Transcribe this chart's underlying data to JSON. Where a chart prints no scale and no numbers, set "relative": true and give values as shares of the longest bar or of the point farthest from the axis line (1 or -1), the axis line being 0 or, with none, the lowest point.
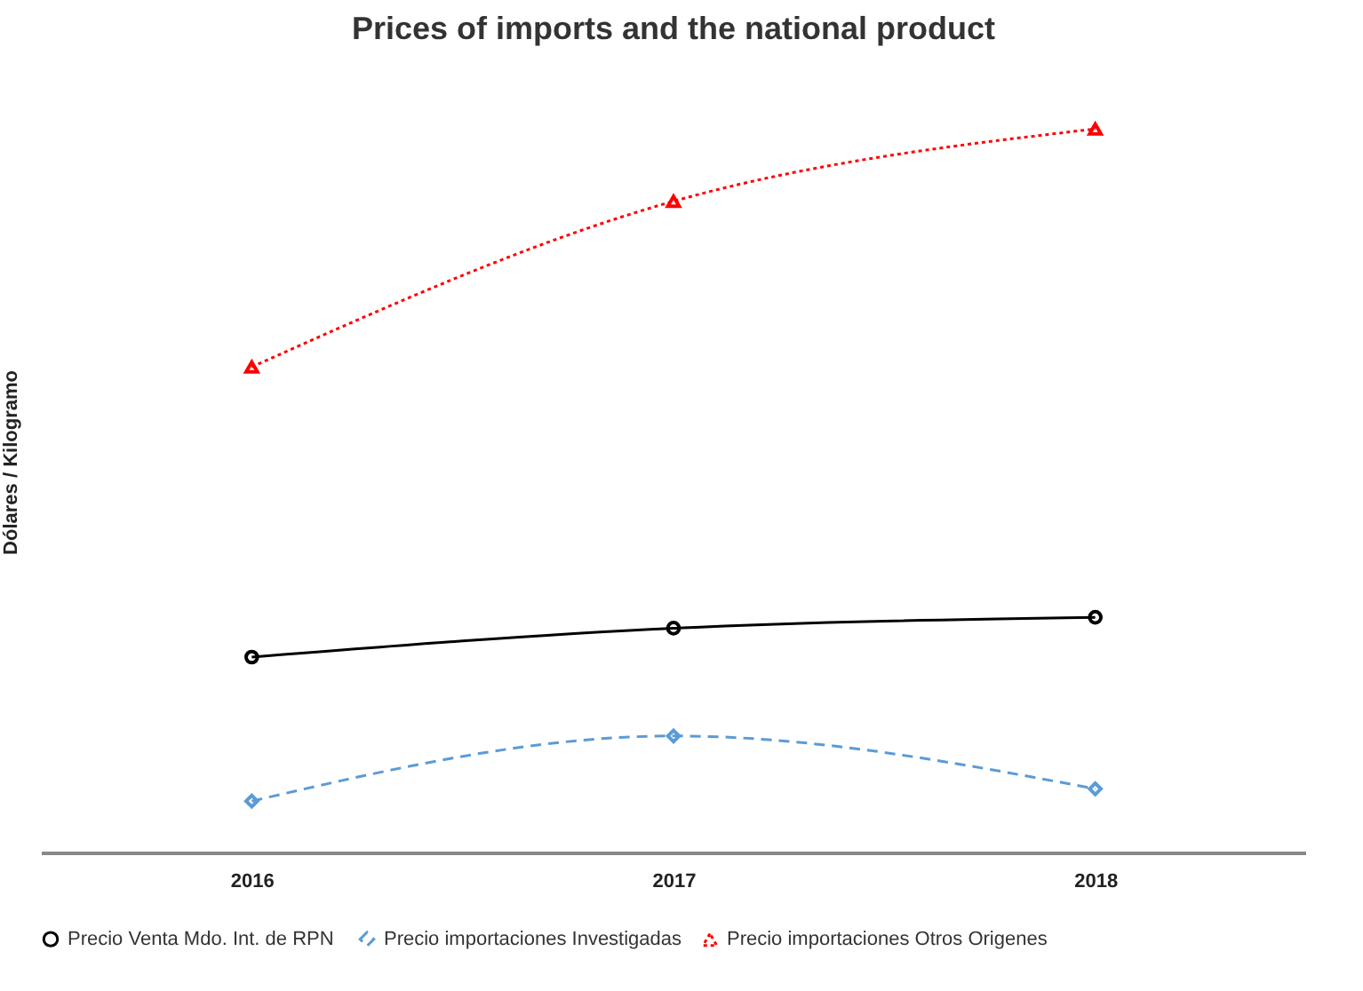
{
  "chart_data": {
    "type": "line",
    "title": "Prices of imports and the national product",
    "ylabel": "Dólares / Kilogramo",
    "categories": [
      "2016",
      "2017",
      "2018"
    ],
    "relative": true,
    "legend": "bottom",
    "grid": false,
    "series": [
      {
        "name": "Precio Venta  Mdo. Int. de RPN",
        "color": "#000000",
        "marker": "circle",
        "line_style": "solid",
        "values": [
          0.27,
          0.31,
          0.325
        ]
      },
      {
        "name": "Precio importaciones Investigadas",
        "color": "#5b9bd5",
        "marker": "diamond",
        "line_style": "dashed",
        "values": [
          0.071,
          0.161,
          0.088
        ]
      },
      {
        "name": "Precio importaciones Otros Origenes",
        "color": "#ff0000",
        "marker": "triangle",
        "line_style": "dotted",
        "values": [
          0.671,
          0.9,
          1
        ]
      }
    ]
  }
}
